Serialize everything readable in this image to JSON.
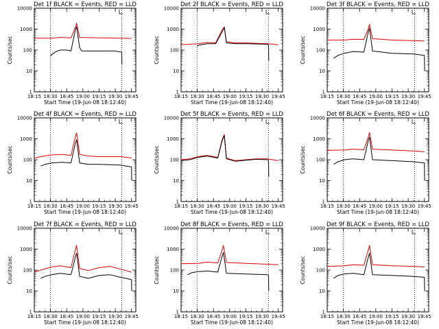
{
  "chart_data": {
    "type": "line",
    "layout": "3x3 grid",
    "shared": {
      "ylabel": "Counts/sec",
      "xlabel": "Start Time (19-Jun-08 18:12:40)",
      "y_scale": "log",
      "ylim": [
        1,
        10000
      ],
      "y_ticks": [
        1,
        10,
        100,
        1000,
        10000
      ],
      "y_tick_labels": [
        "1",
        "10",
        "100",
        "1000",
        "10000"
      ],
      "xlim_minutes": [
        0,
        47
      ],
      "x_ticks_minutes": [
        0,
        7.5,
        15,
        22.5,
        30,
        37.5,
        45
      ],
      "x_tick_labels": [
        "18:15",
        "18:30",
        "18:45",
        "19:00",
        "19:15",
        "19:30",
        "19:45"
      ],
      "dotted_lines_minutes": [
        7.5,
        40.5
      ],
      "colors": {
        "events": "#000000",
        "lld": "#dd0000"
      },
      "legend": "BLACK = Events, RED = LLD",
      "corner_marker": "top-right inside axes"
    },
    "panels": [
      {
        "title": "Det 1f BLACK = Events, RED = LLD",
        "series": [
          {
            "name": "LLD",
            "color": "#dd0000",
            "x": [
              0,
              8,
              12,
              17,
              19,
              19.6,
              21,
              30,
              40,
              45
            ],
            "y": [
              370,
              370,
              400,
              380,
              1200,
              1900,
              400,
              380,
              370,
              360
            ]
          },
          {
            "name": "Events",
            "color": "#000000",
            "x": [
              7.5,
              8,
              10,
              12,
              15,
              17,
              19,
              19.6,
              21,
              22,
              30,
              37,
              40.5,
              40.6
            ],
            "y": [
              50,
              60,
              85,
              100,
              100,
              90,
              900,
              1300,
              130,
              90,
              90,
              90,
              80,
              20
            ]
          }
        ]
      },
      {
        "title": "Det 2f BLACK = Events, RED = LLD",
        "series": [
          {
            "name": "LLD",
            "color": "#dd0000",
            "x": [
              0,
              4,
              8,
              12,
              16,
              19,
              20,
              21,
              25,
              30,
              40,
              45
            ],
            "y": [
              180,
              190,
              200,
              230,
              220,
              900,
              1300,
              250,
              220,
              220,
              200,
              180
            ]
          },
          {
            "name": "Events",
            "color": "#000000",
            "x": [
              7.5,
              8,
              12,
              16,
              19,
              20,
              21,
              25,
              30,
              40,
              40.5,
              40.6
            ],
            "y": [
              150,
              170,
              200,
              200,
              750,
              1200,
              220,
              200,
              200,
              190,
              170,
              30
            ]
          }
        ]
      },
      {
        "title": "Det 3f BLACK = Events, RED = LLD",
        "series": [
          {
            "name": "LLD",
            "color": "#dd0000",
            "x": [
              0,
              8,
              12,
              17,
              19,
              19.6,
              21,
              30,
              40,
              45
            ],
            "y": [
              300,
              300,
              330,
              320,
              1000,
              1700,
              350,
              300,
              280,
              270
            ]
          },
          {
            "name": "Events",
            "color": "#000000",
            "x": [
              3,
              5,
              8,
              12,
              17,
              19,
              19.6,
              21,
              30,
              40,
              45,
              45.1
            ],
            "y": [
              40,
              55,
              70,
              85,
              80,
              700,
              1100,
              90,
              70,
              65,
              55,
              10
            ]
          }
        ]
      },
      {
        "title": "Det 4f BLACK = Events, RED = LLD",
        "series": [
          {
            "name": "LLD",
            "color": "#dd0000",
            "x": [
              0,
              3,
              8,
              13,
              17,
              19,
              19.6,
              21,
              25,
              30,
              35,
              40,
              45
            ],
            "y": [
              120,
              140,
              170,
              180,
              160,
              1200,
              1900,
              180,
              150,
              140,
              140,
              140,
              120
            ]
          },
          {
            "name": "Events",
            "color": "#000000",
            "x": [
              3,
              5,
              8,
              13,
              17,
              19,
              19.6,
              21,
              25,
              30,
              40,
              45,
              45.1
            ],
            "y": [
              50,
              60,
              70,
              75,
              70,
              600,
              900,
              70,
              60,
              60,
              55,
              45,
              10
            ]
          }
        ]
      },
      {
        "title": "Det 5f BLACK = Events, RED = LLD",
        "series": [
          {
            "name": "LLD",
            "color": "#dd0000",
            "x": [
              0,
              4,
              8,
              12,
              17,
              19,
              20,
              21,
              25,
              30,
              35,
              40,
              45
            ],
            "y": [
              100,
              110,
              140,
              160,
              130,
              900,
              1600,
              120,
              90,
              100,
              110,
              110,
              90
            ]
          },
          {
            "name": "Events",
            "color": "#000000",
            "x": [
              0,
              4,
              8,
              12,
              17,
              19,
              20,
              21,
              25,
              30,
              35,
              40,
              40.5,
              40.6
            ],
            "y": [
              90,
              100,
              130,
              150,
              120,
              800,
              1400,
              110,
              85,
              95,
              105,
              100,
              90,
              15
            ]
          }
        ]
      },
      {
        "title": "Det 6f BLACK = Events, RED = LLD",
        "series": [
          {
            "name": "LLD",
            "color": "#dd0000",
            "x": [
              0,
              8,
              12,
              17,
              19,
              19.6,
              21,
              30,
              40,
              45
            ],
            "y": [
              280,
              290,
              320,
              300,
              1200,
              2000,
              320,
              290,
              260,
              240
            ]
          },
          {
            "name": "Events",
            "color": "#000000",
            "x": [
              3,
              5,
              8,
              12,
              17,
              19,
              19.6,
              21,
              30,
              40,
              45,
              45.1
            ],
            "y": [
              60,
              80,
              100,
              110,
              100,
              800,
              1200,
              100,
              90,
              80,
              70,
              10
            ]
          }
        ]
      },
      {
        "title": "Det 7f BLACK = Events, RED = LLD",
        "series": [
          {
            "name": "LLD",
            "color": "#dd0000",
            "x": [
              0,
              3,
              8,
              12,
              17,
              19,
              19.6,
              21,
              25,
              30,
              35,
              40,
              45
            ],
            "y": [
              80,
              100,
              140,
              160,
              130,
              900,
              1500,
              120,
              95,
              130,
              150,
              110,
              80
            ]
          },
          {
            "name": "Events",
            "color": "#000000",
            "x": [
              3,
              5,
              8,
              12,
              17,
              19,
              19.6,
              21,
              25,
              30,
              35,
              40,
              45,
              45.1
            ],
            "y": [
              40,
              50,
              60,
              70,
              60,
              400,
              650,
              50,
              40,
              55,
              60,
              45,
              35,
              10
            ]
          }
        ]
      },
      {
        "title": "Det 8f BLACK = Events, RED = LLD",
        "series": [
          {
            "name": "LLD",
            "color": "#dd0000",
            "x": [
              0,
              8,
              12,
              17,
              19,
              19.6,
              21,
              30,
              40,
              45
            ],
            "y": [
              200,
              210,
              240,
              220,
              900,
              1500,
              230,
              210,
              190,
              180
            ]
          },
          {
            "name": "Events",
            "color": "#000000",
            "x": [
              3,
              5,
              8,
              12,
              17,
              19,
              19.6,
              21,
              30,
              40,
              40.5,
              40.6
            ],
            "y": [
              60,
              75,
              85,
              90,
              80,
              450,
              700,
              70,
              65,
              60,
              55,
              10
            ]
          }
        ]
      },
      {
        "title": "Det 9f BLACK = Events, RED = LLD",
        "series": [
          {
            "name": "LLD",
            "color": "#dd0000",
            "x": [
              0,
              8,
              12,
              17,
              19,
              19.6,
              21,
              30,
              40,
              45
            ],
            "y": [
              150,
              160,
              180,
              170,
              900,
              1500,
              180,
              160,
              150,
              140
            ]
          },
          {
            "name": "Events",
            "color": "#000000",
            "x": [
              3,
              5,
              8,
              12,
              17,
              19,
              19.6,
              21,
              30,
              40,
              45,
              45.1
            ],
            "y": [
              40,
              55,
              65,
              70,
              60,
              400,
              650,
              60,
              55,
              50,
              45,
              10
            ]
          }
        ]
      }
    ]
  }
}
